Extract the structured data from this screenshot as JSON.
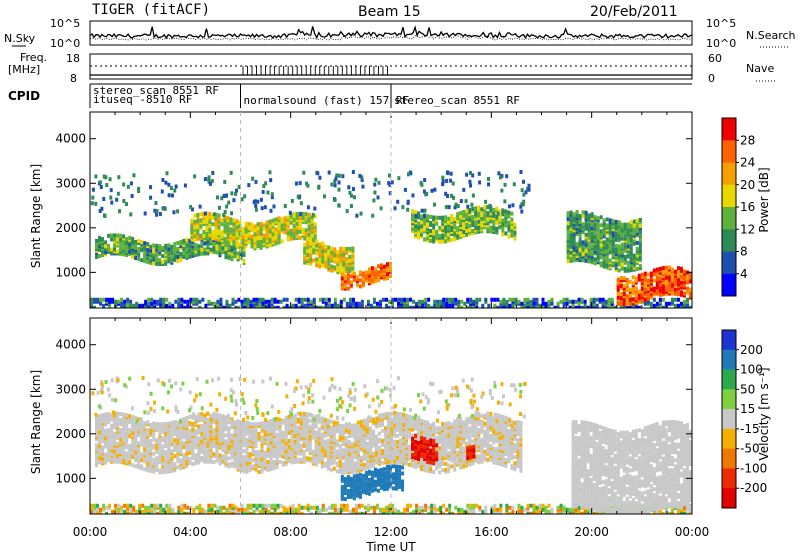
{
  "header": {
    "radar": "TIGER (fitACF)",
    "beam": "Beam 15",
    "date": "20/Feb/2011"
  },
  "top_panels": {
    "nsky_label": "N.Sky",
    "nsky_ticks": [
      "10^5",
      "10^0"
    ],
    "nsearch_label": "N.Search",
    "freq_label": "Freq.",
    "freq_unit": "[MHz]",
    "freq_ticks": [
      "18",
      "8"
    ],
    "nave_ticks": [
      "60",
      "0"
    ],
    "nave_label": "Nave",
    "cpid_label": "CPID",
    "cpid_segments": [
      {
        "start": 0,
        "end": 6,
        "lines": [
          "stereo_scan 8551 RF",
          "ituseq -8510 RF"
        ]
      },
      {
        "start": 6,
        "end": 12,
        "lines": [
          "normalsound (fast) 157 RF"
        ]
      },
      {
        "start": 12,
        "end": 24,
        "lines": [
          "stereo_scan 8551 RF"
        ]
      }
    ]
  },
  "chart_data": [
    {
      "type": "heatmap",
      "name": "power",
      "ylabel": "Slant Range [km]",
      "y_ticks": [
        1000,
        2000,
        3000,
        4000
      ],
      "ylim": [
        200,
        4600
      ],
      "xlim": [
        0,
        24
      ],
      "colorbar_label": "Power [dB]",
      "colorbar_ticks": [
        "4",
        "8",
        "12",
        "16",
        "20",
        "24",
        "28"
      ],
      "colorbar_range": [
        0,
        30
      ],
      "colors": [
        "#0000ff",
        "#1f4fb0",
        "#2e8b57",
        "#5fb03c",
        "#e8d800",
        "#f5a000",
        "#ff6000",
        "#ee0000"
      ],
      "features": [
        {
          "t0": 0.2,
          "t1": 6.2,
          "r0": 1350,
          "r1": 1800,
          "level": 12
        },
        {
          "t0": 4.0,
          "t1": 9.0,
          "r0": 1700,
          "r1": 2250,
          "level": 17
        },
        {
          "t0": 8.5,
          "t1": 10.5,
          "r0": 1150,
          "r1": 1700,
          "level": 18
        },
        {
          "t0": 10.0,
          "t1": 12.0,
          "r0": 800,
          "r1": 1150,
          "level": 25
        },
        {
          "t0": 12.8,
          "t1": 16.9,
          "r0": 1850,
          "r1": 2400,
          "level": 14
        },
        {
          "t0": 21.0,
          "t1": 24.0,
          "r0": 450,
          "r1": 1050,
          "level": 26
        },
        {
          "t0": 19.0,
          "t1": 22.0,
          "r0": 1200,
          "r1": 2300,
          "level": 12
        }
      ]
    },
    {
      "type": "heatmap",
      "name": "velocity",
      "ylabel": "Slant Range [km]",
      "xlabel": "Time UT",
      "y_ticks": [
        1000,
        2000,
        3000,
        4000
      ],
      "ylim": [
        200,
        4600
      ],
      "xlim": [
        0,
        24
      ],
      "x_ticks": [
        "00:00",
        "04:00",
        "08:00",
        "12:00",
        "16:00",
        "20:00",
        "00:00"
      ],
      "colorbar_label": "Velocity [m s⁻¹]",
      "colorbar_ticks": [
        "200",
        "100",
        "50",
        "15",
        "-15",
        "-50",
        "-100",
        "-200"
      ],
      "colors": [
        "#1e34d0",
        "#1f7bb8",
        "#2da84c",
        "#7dd040",
        "#c8c8c8",
        "#f4b000",
        "#f07800",
        "#ee2a00",
        "#e00000"
      ],
      "features": [
        {
          "t0": 0.2,
          "t1": 17.2,
          "r0": 1300,
          "r1": 2400,
          "level": -5
        },
        {
          "t0": 10.0,
          "t1": 12.5,
          "r0": 700,
          "r1": 1200,
          "level": 180
        },
        {
          "t0": 12.8,
          "t1": 13.8,
          "r0": 1500,
          "r1": 2000,
          "level": -200
        },
        {
          "t0": 15.0,
          "t1": 15.3,
          "r0": 1450,
          "r1": 1750,
          "level": -200
        },
        {
          "t0": 19.2,
          "t1": 24.0,
          "r0": 300,
          "r1": 2200,
          "level": 0
        }
      ]
    }
  ]
}
